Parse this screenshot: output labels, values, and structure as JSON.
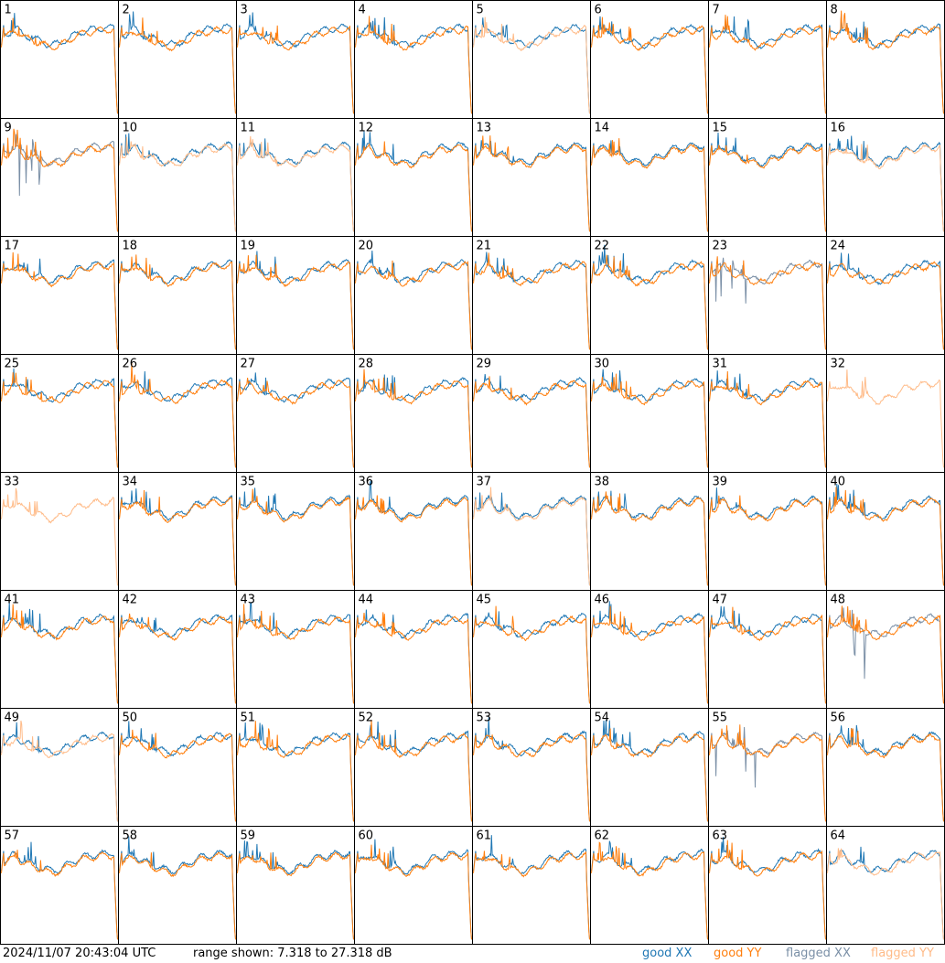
{
  "chart_data": {
    "type": "line",
    "panel_count": 64,
    "columns": 8,
    "rows": 8,
    "panel_labels": [
      "1",
      "2",
      "3",
      "4",
      "5",
      "6",
      "7",
      "8",
      "9",
      "10",
      "11",
      "12",
      "13",
      "14",
      "15",
      "16",
      "17",
      "18",
      "19",
      "20",
      "21",
      "22",
      "23",
      "24",
      "25",
      "26",
      "27",
      "28",
      "29",
      "30",
      "31",
      "32",
      "33",
      "34",
      "35",
      "36",
      "37",
      "38",
      "39",
      "40",
      "41",
      "42",
      "43",
      "44",
      "45",
      "46",
      "47",
      "48",
      "49",
      "50",
      "51",
      "52",
      "53",
      "54",
      "55",
      "56",
      "57",
      "58",
      "59",
      "60",
      "61",
      "62",
      "63",
      "64"
    ],
    "y_range_db": [
      7.318,
      27.318
    ],
    "grid": false,
    "legend_placement": "bottom-right",
    "legend": [
      {
        "label": "good XX",
        "color": "#1f77b4"
      },
      {
        "label": "good YY",
        "color": "#ff7f0e"
      },
      {
        "label": "flagged XX",
        "color": "#7a8fa6"
      },
      {
        "label": "flagged YY",
        "color": "#ffbb88"
      }
    ],
    "panels_shape_notes": "Each panel: spectrum with spiky left region, mid dip, rising right, sharp drop at edges; some antennas show deviations (e.g. 5, 6, 9, 16, 23, 34, 39, 55, 64).",
    "flagged": {
      "xx_flagged": [
        9,
        23,
        48,
        55
      ],
      "yy_flagged": [
        5,
        10,
        11,
        16,
        32,
        33,
        37,
        49,
        64
      ],
      "xx_absent": [
        32,
        33
      ],
      "yy_absent": []
    }
  },
  "footer": {
    "timestamp": "2024/11/07 20:43:04 UTC",
    "range_text": "range shown: 7.318 to 27.318 dB",
    "legend_good_xx": "good XX",
    "legend_good_yy": "good YY",
    "legend_flagged_xx": "flagged XX",
    "legend_flagged_yy": "flagged YY"
  }
}
